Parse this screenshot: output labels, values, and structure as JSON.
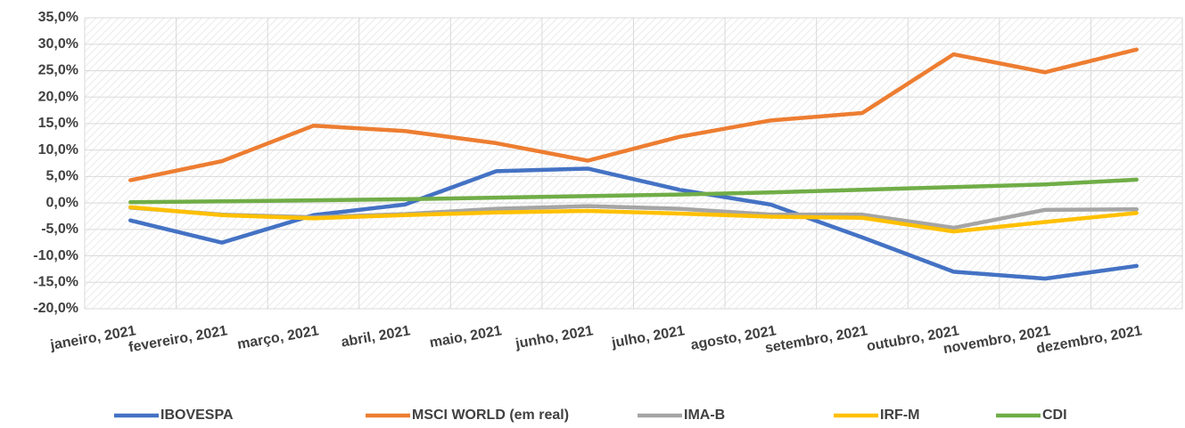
{
  "chart_data": {
    "type": "line",
    "categories": [
      "janeiro, 2021",
      "fevereiro, 2021",
      "março, 2021",
      "abril, 2021",
      "maio, 2021",
      "junho, 2021",
      "julho, 2021",
      "agosto, 2021",
      "setembro, 2021",
      "outubro, 2021",
      "novembro, 2021",
      "dezembro, 2021"
    ],
    "series": [
      {
        "name": "IBOVESPA",
        "color": "#4472c4",
        "values": [
          -3.3,
          -7.5,
          -2.3,
          -0.3,
          6.0,
          6.5,
          2.5,
          -0.3,
          -6.5,
          -13.0,
          -14.3,
          -11.9
        ]
      },
      {
        "name": "MSCI WORLD (em real)",
        "color": "#ed7d31",
        "values": [
          4.3,
          7.9,
          14.6,
          13.6,
          11.3,
          8.0,
          12.5,
          15.6,
          17.0,
          28.1,
          24.7,
          29.0
        ]
      },
      {
        "name": "IMA-B",
        "color": "#a5a5a5",
        "values": [
          -0.9,
          -2.2,
          -2.7,
          -2.1,
          -1.1,
          -0.6,
          -1.1,
          -2.2,
          -2.2,
          -4.7,
          -1.3,
          -1.2
        ]
      },
      {
        "name": "IRF-M",
        "color": "#ffc000",
        "values": [
          -0.8,
          -2.3,
          -2.9,
          -2.3,
          -1.8,
          -1.5,
          -2.0,
          -2.6,
          -2.8,
          -5.4,
          -3.6,
          -1.9
        ]
      },
      {
        "name": "CDI",
        "color": "#70ad47",
        "values": [
          0.15,
          0.3,
          0.5,
          0.7,
          1.0,
          1.3,
          1.6,
          2.0,
          2.5,
          3.0,
          3.5,
          4.4
        ]
      }
    ],
    "ylim": [
      -20,
      35
    ],
    "yticks": [
      {
        "value": -20,
        "label": "-20,0%"
      },
      {
        "value": -15,
        "label": "-15,0%"
      },
      {
        "value": -10,
        "label": "-10,0%"
      },
      {
        "value": -5,
        "label": "-5,0%"
      },
      {
        "value": 0,
        "label": "0,0%"
      },
      {
        "value": 5,
        "label": "5,0%"
      },
      {
        "value": 10,
        "label": "10,0%"
      },
      {
        "value": 15,
        "label": "15,0%"
      },
      {
        "value": 20,
        "label": "20,0%"
      },
      {
        "value": 25,
        "label": "25,0%"
      },
      {
        "value": 30,
        "label": "30,0%"
      },
      {
        "value": 35,
        "label": "35,0%"
      }
    ],
    "grid": true,
    "legend": "bottom"
  }
}
